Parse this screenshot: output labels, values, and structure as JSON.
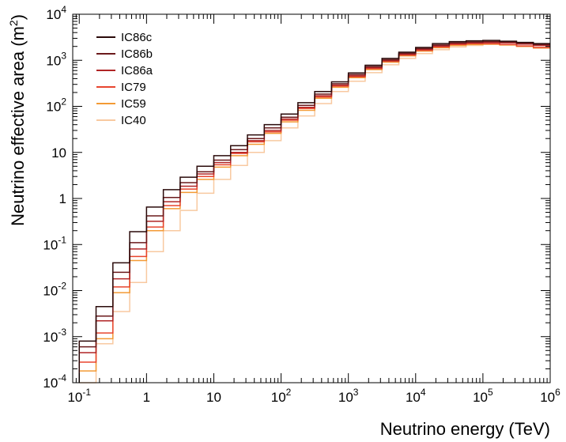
{
  "chart_data": {
    "type": "line",
    "xlabel": "Neutrino energy (TeV)",
    "ylabel_main": "Neutrino effective area (m",
    "ylabel_sup": "2",
    "ylabel_close": ")",
    "xscale": "log",
    "yscale": "log",
    "xlim": [
      0.08,
      1000000
    ],
    "ylim": [
      0.0001,
      10000
    ],
    "grid": false,
    "legend_position": "top-left",
    "x_ticks": [
      {
        "base": "10",
        "exp": "-1",
        "value": 0.1
      },
      {
        "base": "1",
        "exp": "",
        "value": 1
      },
      {
        "base": "10",
        "exp": "",
        "value": 10
      },
      {
        "base": "10",
        "exp": "2",
        "value": 100
      },
      {
        "base": "10",
        "exp": "3",
        "value": 1000
      },
      {
        "base": "10",
        "exp": "4",
        "value": 10000
      },
      {
        "base": "10",
        "exp": "5",
        "value": 100000
      },
      {
        "base": "10",
        "exp": "6",
        "value": 1000000
      }
    ],
    "y_ticks": [
      {
        "base": "10",
        "exp": "-4",
        "value": 0.0001
      },
      {
        "base": "10",
        "exp": "-3",
        "value": 0.001
      },
      {
        "base": "10",
        "exp": "-2",
        "value": 0.01
      },
      {
        "base": "10",
        "exp": "-1",
        "value": 0.1
      },
      {
        "base": "1",
        "exp": "",
        "value": 1
      },
      {
        "base": "10",
        "exp": "",
        "value": 10
      },
      {
        "base": "10",
        "exp": "2",
        "value": 100
      },
      {
        "base": "10",
        "exp": "3",
        "value": 1000
      },
      {
        "base": "10",
        "exp": "4",
        "value": 10000
      }
    ],
    "bin_edges_log10": [
      -1.0,
      -0.75,
      -0.5,
      -0.25,
      0.0,
      0.25,
      0.5,
      0.75,
      1.0,
      1.25,
      1.5,
      1.75,
      2.0,
      2.25,
      2.5,
      2.75,
      3.0,
      3.25,
      3.5,
      3.75,
      4.0,
      4.25,
      4.5,
      4.75,
      5.0,
      5.25,
      5.5,
      5.75,
      6.0
    ],
    "series": [
      {
        "name": "IC86c",
        "color": "#2a0a0a",
        "values": [
          0.0008,
          0.0045,
          0.04,
          0.19,
          0.65,
          1.55,
          2.9,
          5.0,
          8.5,
          14,
          24,
          40,
          68,
          120,
          210,
          340,
          530,
          780,
          1100,
          1500,
          1900,
          2300,
          2550,
          2650,
          2700,
          2600,
          2450,
          2300
        ]
      },
      {
        "name": "IC86b",
        "color": "#6b1a1c",
        "values": [
          0.0006,
          0.0028,
          0.025,
          0.11,
          0.42,
          1.05,
          2.2,
          3.8,
          6.8,
          11.5,
          20,
          34,
          58,
          105,
          185,
          310,
          490,
          730,
          1030,
          1420,
          1800,
          2150,
          2400,
          2500,
          2550,
          2500,
          2350,
          2200
        ]
      },
      {
        "name": "IC86a",
        "color": "#b02526",
        "values": [
          0.00045,
          0.0022,
          0.018,
          0.08,
          0.32,
          0.85,
          1.85,
          3.4,
          6.0,
          10,
          18,
          30,
          53,
          95,
          170,
          290,
          460,
          690,
          980,
          1350,
          1720,
          2050,
          2300,
          2400,
          2450,
          2400,
          2250,
          2100
        ]
      },
      {
        "name": "IC79",
        "color": "#e8452f",
        "values": [
          0.00028,
          0.0012,
          0.012,
          0.055,
          0.24,
          0.7,
          1.6,
          3.0,
          5.4,
          9.5,
          17,
          28,
          50,
          90,
          160,
          275,
          440,
          660,
          950,
          1300,
          1650,
          1950,
          2200,
          2300,
          2300,
          2200,
          2050,
          1900
        ]
      },
      {
        "name": "IC59",
        "color": "#f39a35",
        "values": [
          0.00018,
          0.0009,
          0.009,
          0.045,
          0.2,
          0.6,
          1.35,
          2.6,
          4.8,
          8.5,
          15,
          26,
          46,
          82,
          150,
          260,
          420,
          630,
          910,
          1250,
          1580,
          1870,
          2100,
          2200,
          2250,
          2150,
          2000,
          1850
        ]
      },
      {
        "name": "IC40",
        "color": "#f8c9a0",
        "values": [
          0.0001,
          0.0007,
          0.0035,
          0.015,
          0.07,
          0.2,
          0.55,
          1.3,
          2.6,
          5.2,
          10,
          18,
          34,
          62,
          115,
          210,
          350,
          540,
          800,
          1100,
          1400,
          1700,
          1950,
          2100,
          2200,
          2150,
          2050,
          1900
        ]
      }
    ]
  }
}
